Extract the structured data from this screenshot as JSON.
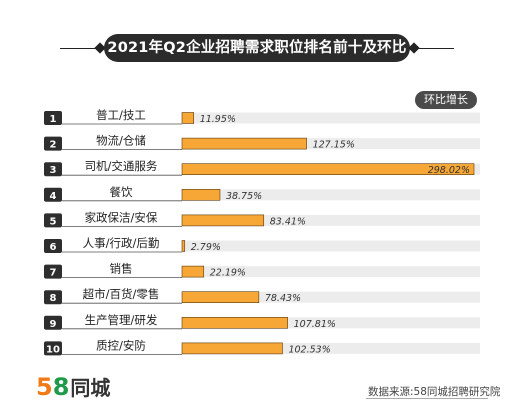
{
  "title": "2021年Q2企业招聘需求职位排名前十及环比增长",
  "legend_label": "环比增长",
  "brand": {
    "logo_5": "5",
    "logo_8": "8",
    "logo_text": "同城"
  },
  "source": "数据来源:58同城招聘研究院",
  "colors": {
    "bar": "#f7a736",
    "track": "#ececec",
    "badge": "#2e2e2e",
    "title_bg": "#2b2b2b"
  },
  "chart_data": {
    "type": "bar",
    "orientation": "horizontal",
    "title": "2021年Q2企业招聘需求职位排名前十及环比增长",
    "xlabel": "",
    "ylabel": "",
    "series": [
      {
        "name": "环比增长",
        "values": [
          11.95,
          127.15,
          298.02,
          38.75,
          83.41,
          2.79,
          22.19,
          78.43,
          107.81,
          102.53
        ]
      }
    ],
    "ranks": [
      "1",
      "2",
      "3",
      "4",
      "5",
      "6",
      "7",
      "8",
      "9",
      "10"
    ],
    "categories": [
      "普工/技工",
      "物流/仓储",
      "司机/交通服务",
      "餐饮",
      "家政保洁/安保",
      "人事/行政/后勤",
      "销售",
      "超市/百货/零售",
      "生产管理/研发",
      "质控/安防"
    ],
    "value_labels": [
      "11.95%",
      "127.15%",
      "298.02%",
      "38.75%",
      "83.41%",
      "2.79%",
      "22.19%",
      "78.43%",
      "107.81%",
      "102.53%"
    ],
    "xlim": [
      0,
      298.02
    ],
    "grid": false,
    "legend": "top-right"
  }
}
